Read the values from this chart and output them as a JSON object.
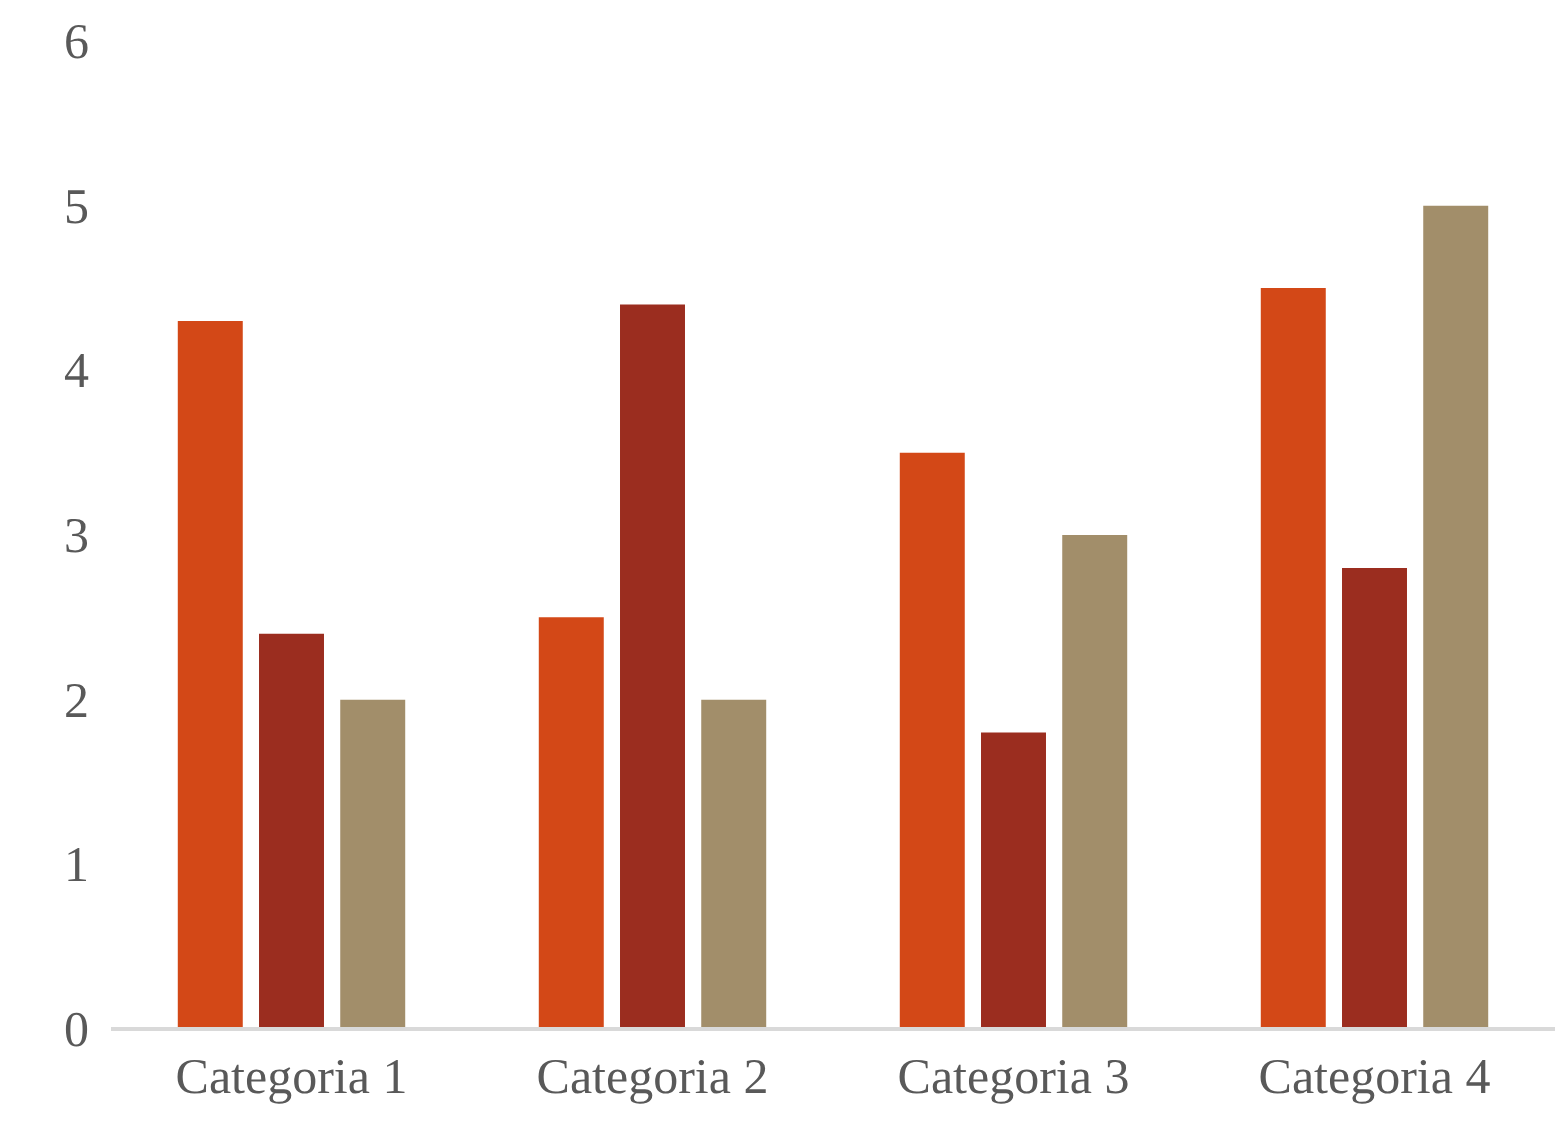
{
  "chart_data": {
    "type": "bar",
    "categories": [
      "Categoria 1",
      "Categoria 2",
      "Categoria 3",
      "Categoria 4"
    ],
    "series": [
      {
        "color": "#d34817",
        "values": [
          4.3,
          2.5,
          3.5,
          4.5
        ]
      },
      {
        "color": "#9b2d1f",
        "values": [
          2.4,
          4.4,
          1.8,
          2.8
        ]
      },
      {
        "color": "#a28e6a",
        "values": [
          2,
          2,
          3,
          5
        ]
      }
    ],
    "ylim": [
      0,
      6
    ],
    "yticks": [
      0,
      1,
      2,
      3,
      4,
      5,
      6
    ],
    "grid": false
  }
}
